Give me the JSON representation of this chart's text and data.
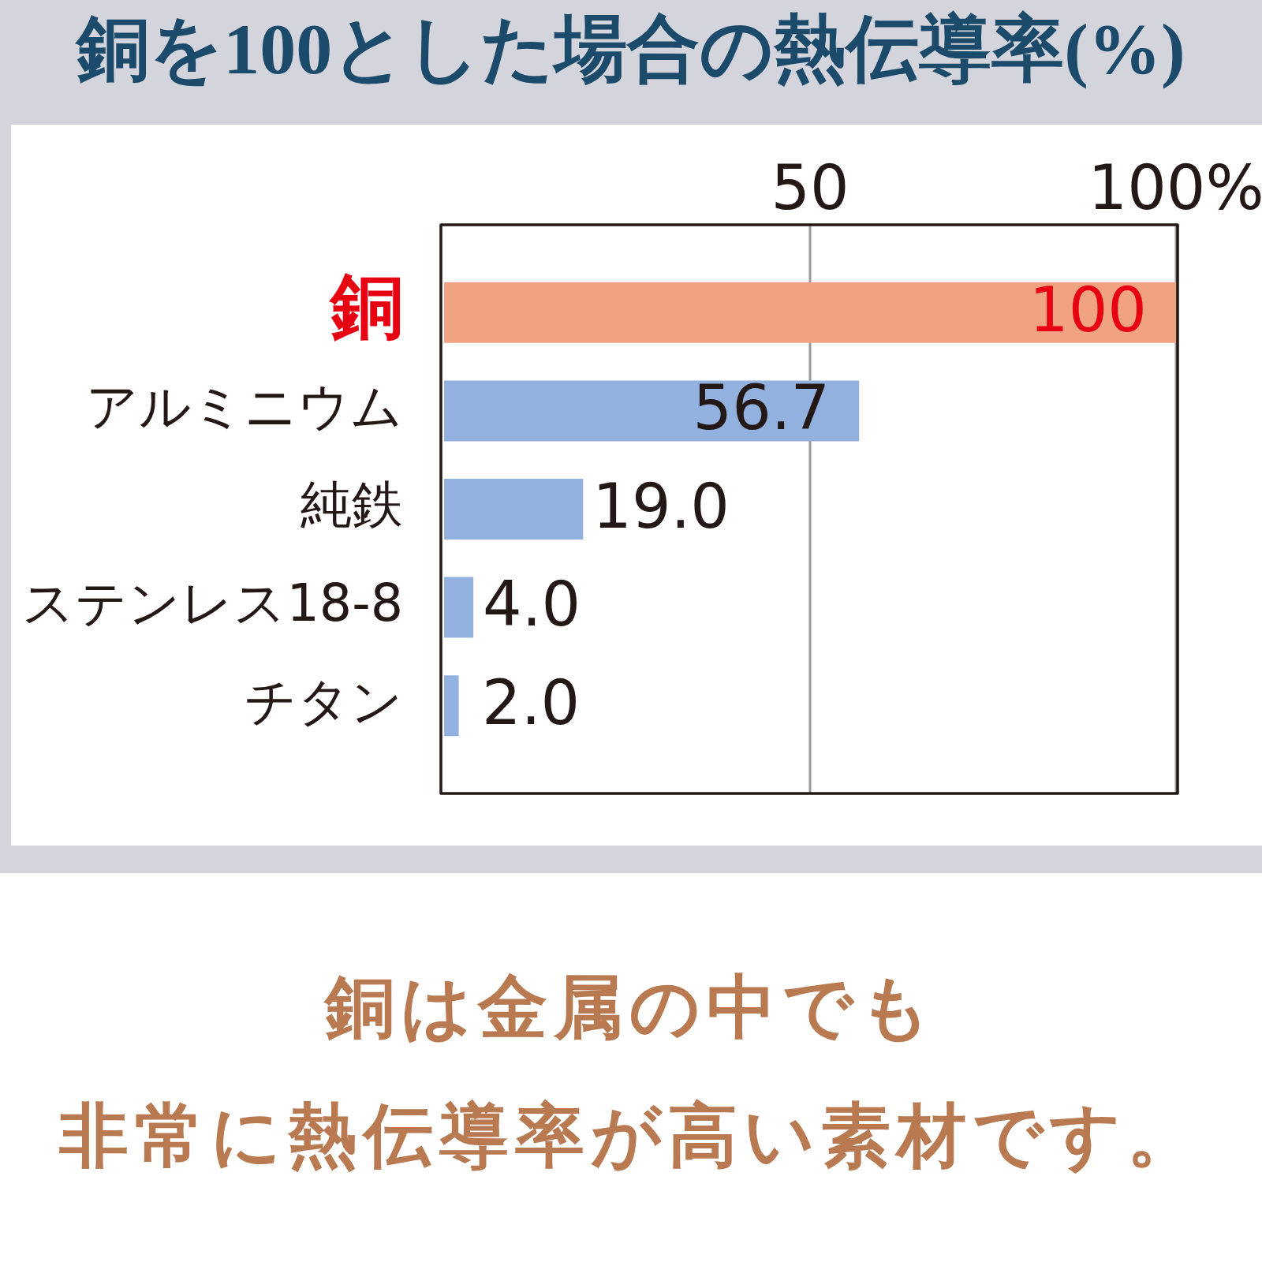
{
  "chart_data": {
    "type": "bar",
    "orientation": "horizontal",
    "title": "銅を100とした場合の熱伝導率(%)",
    "categories": [
      "銅",
      "アルミニウム",
      "純鉄",
      "ステンレス18-8",
      "チタン"
    ],
    "values": [
      100,
      56.7,
      19.0,
      4.0,
      2.0
    ],
    "colors": [
      "#f0a282",
      "#93b1df",
      "#93b1df",
      "#93b1df",
      "#93b1df"
    ],
    "value_labels": [
      "100",
      "56.7",
      "19.0",
      "4.0",
      "2.0"
    ],
    "xlim": [
      0,
      100
    ],
    "xticks": [
      {
        "value": 50,
        "label": "50"
      },
      {
        "value": 100,
        "label": "100%"
      }
    ],
    "grid": "x",
    "annotations": [
      "銅は金属の中でも",
      "非常に熱伝導率が高い素材です。"
    ]
  }
}
